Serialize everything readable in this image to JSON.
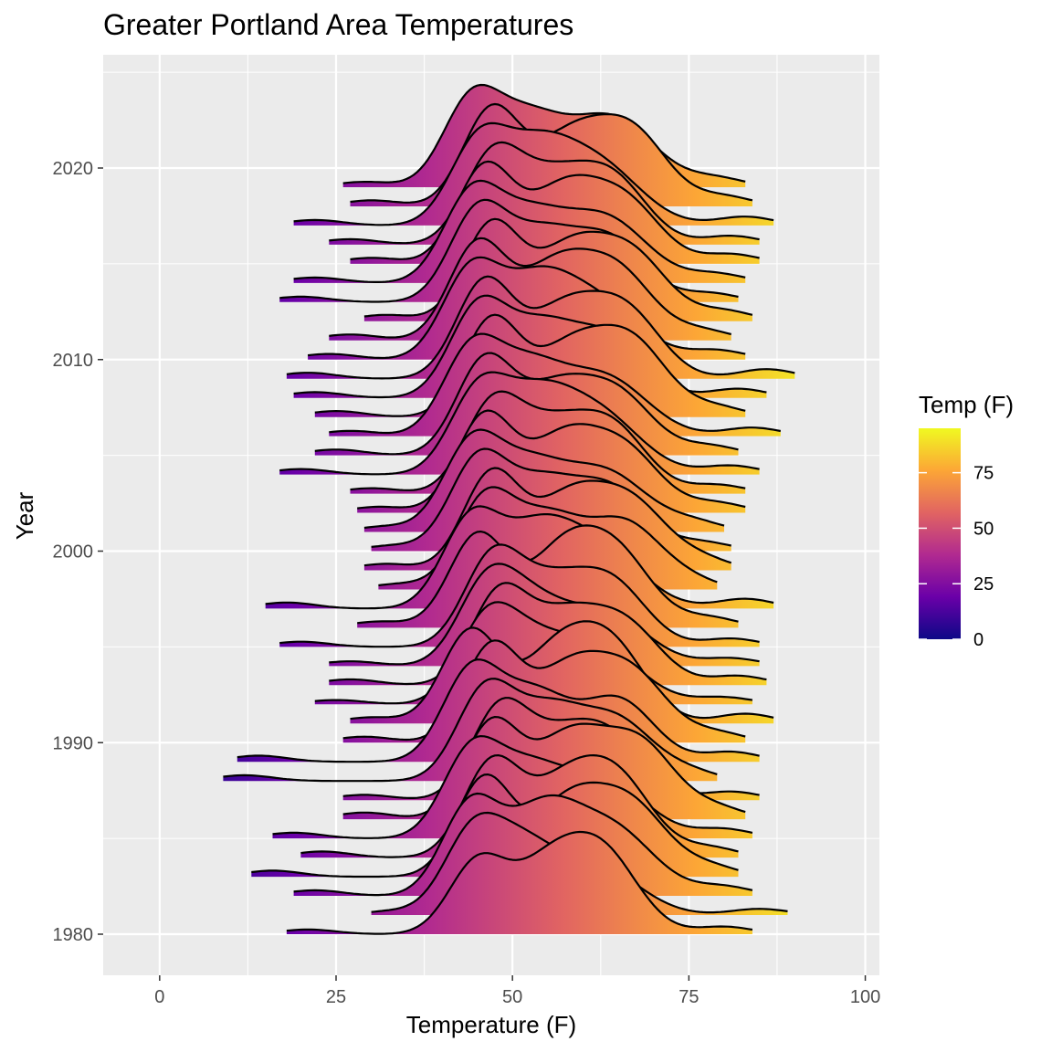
{
  "chart_data": {
    "type": "ridgeline",
    "title": "Greater Portland Area Temperatures",
    "xlabel": "Temperature (F)",
    "ylabel": "Year",
    "xlim": [
      -8,
      102
    ],
    "xticks": [
      0,
      25,
      50,
      75,
      100
    ],
    "yticks": [
      1980,
      1990,
      2000,
      2010,
      2020
    ],
    "years": [
      1980,
      1981,
      1982,
      1983,
      1984,
      1985,
      1986,
      1987,
      1988,
      1989,
      1990,
      1991,
      1992,
      1993,
      1994,
      1995,
      1996,
      1997,
      1998,
      1999,
      2000,
      2001,
      2002,
      2003,
      2004,
      2005,
      2006,
      2007,
      2008,
      2009,
      2010,
      2011,
      2012,
      2013,
      2014,
      2015,
      2016,
      2017,
      2018,
      2019
    ],
    "grid": true,
    "fill_scale": {
      "title": "Temp (F)",
      "palette": "plasma",
      "ticks": [
        0,
        25,
        50,
        75
      ],
      "range": [
        0,
        95
      ],
      "colors": [
        "#0d0887",
        "#6a00a8",
        "#b12a90",
        "#e16462",
        "#fca636",
        "#f0f921"
      ]
    },
    "series": [
      {
        "year": 1980,
        "min": 18,
        "max": 84,
        "peaks": [
          [
            45,
            4,
            0.75
          ],
          [
            55,
            5,
            0.7
          ],
          [
            63,
            5,
            0.8
          ]
        ]
      },
      {
        "year": 1981,
        "min": 30,
        "max": 89,
        "peaks": [
          [
            44,
            4,
            0.9
          ],
          [
            51,
            5,
            0.85
          ],
          [
            62,
            6,
            0.6
          ]
        ]
      },
      {
        "year": 1982,
        "min": 19,
        "max": 84,
        "peaks": [
          [
            44,
            4,
            0.8
          ],
          [
            54,
            5,
            0.7
          ],
          [
            64,
            6,
            0.6
          ]
        ]
      },
      {
        "year": 1983,
        "min": 13,
        "max": 82,
        "peaks": [
          [
            46,
            4,
            0.8
          ],
          [
            58,
            5,
            0.6
          ],
          [
            67,
            5,
            0.55
          ]
        ]
      },
      {
        "year": 1984,
        "min": 20,
        "max": 82,
        "peaks": [
          [
            47,
            4,
            0.75
          ],
          [
            57,
            5,
            0.55
          ],
          [
            65,
            5,
            0.6
          ]
        ]
      },
      {
        "year": 1985,
        "min": 16,
        "max": 84,
        "peaks": [
          [
            44,
            4,
            0.7
          ],
          [
            52,
            5,
            0.55
          ],
          [
            63,
            6,
            0.5
          ]
        ]
      },
      {
        "year": 1986,
        "min": 26,
        "max": 83,
        "peaks": [
          [
            47,
            4,
            0.7
          ],
          [
            58,
            5,
            0.6
          ],
          [
            68,
            5,
            0.55
          ]
        ]
      },
      {
        "year": 1987,
        "min": 26,
        "max": 85,
        "peaks": [
          [
            48,
            4,
            0.8
          ],
          [
            56,
            5,
            0.5
          ],
          [
            64,
            5,
            0.55
          ]
        ]
      },
      {
        "year": 1988,
        "min": 9,
        "max": 79,
        "peaks": [
          [
            46,
            4,
            0.75
          ],
          [
            55,
            5,
            0.6
          ],
          [
            65,
            5,
            0.5
          ]
        ]
      },
      {
        "year": 1989,
        "min": 11,
        "max": 85,
        "peaks": [
          [
            44,
            4,
            0.7
          ],
          [
            53,
            5,
            0.55
          ],
          [
            65,
            5,
            0.5
          ]
        ]
      },
      {
        "year": 1990,
        "min": 26,
        "max": 83,
        "peaks": [
          [
            47,
            4,
            0.8
          ],
          [
            58,
            5,
            0.6
          ],
          [
            67,
            5,
            0.55
          ]
        ]
      },
      {
        "year": 1991,
        "min": 27,
        "max": 87,
        "peaks": [
          [
            44,
            4,
            0.75
          ],
          [
            56,
            5,
            0.55
          ],
          [
            64,
            5,
            0.6
          ]
        ]
      },
      {
        "year": 1992,
        "min": 22,
        "max": 84,
        "peaks": [
          [
            46,
            4,
            0.8
          ],
          [
            52,
            5,
            0.6
          ],
          [
            62,
            6,
            0.65
          ]
        ]
      },
      {
        "year": 1993,
        "min": 24,
        "max": 86,
        "peaks": [
          [
            48,
            4,
            0.75
          ],
          [
            57,
            5,
            0.55
          ],
          [
            66,
            5,
            0.5
          ]
        ]
      },
      {
        "year": 1994,
        "min": 24,
        "max": 85,
        "peaks": [
          [
            46,
            4,
            0.7
          ],
          [
            52,
            5,
            0.6
          ],
          [
            63,
            6,
            0.55
          ]
        ]
      },
      {
        "year": 1995,
        "min": 17,
        "max": 85,
        "peaks": [
          [
            47,
            4,
            0.8
          ],
          [
            55,
            5,
            0.55
          ],
          [
            64,
            5,
            0.6
          ]
        ]
      },
      {
        "year": 1996,
        "min": 28,
        "max": 82,
        "peaks": [
          [
            45,
            4,
            0.75
          ],
          [
            57,
            5,
            0.6
          ],
          [
            65,
            5,
            0.55
          ]
        ]
      },
      {
        "year": 1997,
        "min": 15,
        "max": 87,
        "peaks": [
          [
            44,
            4,
            0.7
          ],
          [
            53,
            5,
            0.55
          ],
          [
            62,
            6,
            0.5
          ]
        ]
      },
      {
        "year": 1998,
        "min": 31,
        "max": 79,
        "peaks": [
          [
            46,
            4,
            0.8
          ],
          [
            55,
            5,
            0.65
          ],
          [
            66,
            5,
            0.6
          ]
        ]
      },
      {
        "year": 1999,
        "min": 29,
        "max": 81,
        "peaks": [
          [
            47,
            4,
            0.75
          ],
          [
            58,
            5,
            0.55
          ],
          [
            67,
            5,
            0.5
          ]
        ]
      },
      {
        "year": 2000,
        "min": 30,
        "max": 81,
        "peaks": [
          [
            45,
            4,
            0.8
          ],
          [
            54,
            5,
            0.6
          ],
          [
            64,
            5,
            0.55
          ]
        ]
      },
      {
        "year": 2001,
        "min": 29,
        "max": 80,
        "peaks": [
          [
            44,
            4,
            0.75
          ],
          [
            52,
            5,
            0.55
          ],
          [
            63,
            6,
            0.55
          ]
        ]
      },
      {
        "year": 2002,
        "min": 28,
        "max": 83,
        "peaks": [
          [
            46,
            4,
            0.8
          ],
          [
            57,
            5,
            0.6
          ],
          [
            66,
            5,
            0.5
          ]
        ]
      },
      {
        "year": 2003,
        "min": 27,
        "max": 83,
        "peaks": [
          [
            47,
            4,
            0.75
          ],
          [
            55,
            5,
            0.55
          ],
          [
            64,
            5,
            0.6
          ]
        ]
      },
      {
        "year": 2004,
        "min": 17,
        "max": 85,
        "peaks": [
          [
            45,
            4,
            0.7
          ],
          [
            53,
            5,
            0.6
          ],
          [
            62,
            6,
            0.55
          ]
        ]
      },
      {
        "year": 2005,
        "min": 22,
        "max": 82,
        "peaks": [
          [
            46,
            4,
            0.8
          ],
          [
            56,
            5,
            0.55
          ],
          [
            65,
            5,
            0.5
          ]
        ]
      },
      {
        "year": 2006,
        "min": 24,
        "max": 88,
        "peaks": [
          [
            44,
            4,
            0.75
          ],
          [
            52,
            5,
            0.6
          ],
          [
            63,
            6,
            0.55
          ]
        ]
      },
      {
        "year": 2007,
        "min": 22,
        "max": 83,
        "peaks": [
          [
            47,
            4,
            0.8
          ],
          [
            58,
            5,
            0.55
          ],
          [
            67,
            5,
            0.6
          ]
        ]
      },
      {
        "year": 2008,
        "min": 19,
        "max": 86,
        "peaks": [
          [
            45,
            4,
            0.75
          ],
          [
            54,
            5,
            0.6
          ],
          [
            64,
            5,
            0.5
          ]
        ]
      },
      {
        "year": 2009,
        "min": 18,
        "max": 90,
        "peaks": [
          [
            46,
            4,
            0.8
          ],
          [
            57,
            5,
            0.55
          ],
          [
            66,
            5,
            0.55
          ]
        ]
      },
      {
        "year": 2010,
        "min": 21,
        "max": 83,
        "peaks": [
          [
            44,
            4,
            0.75
          ],
          [
            53,
            5,
            0.6
          ],
          [
            62,
            6,
            0.5
          ]
        ]
      },
      {
        "year": 2011,
        "min": 24,
        "max": 81,
        "peaks": [
          [
            45,
            4,
            0.8
          ],
          [
            56,
            5,
            0.6
          ],
          [
            65,
            5,
            0.55
          ]
        ]
      },
      {
        "year": 2012,
        "min": 29,
        "max": 84,
        "peaks": [
          [
            47,
            4,
            0.75
          ],
          [
            58,
            5,
            0.55
          ],
          [
            67,
            5,
            0.5
          ]
        ]
      },
      {
        "year": 2013,
        "min": 17,
        "max": 82,
        "peaks": [
          [
            45,
            4,
            0.8
          ],
          [
            54,
            5,
            0.6
          ],
          [
            64,
            5,
            0.55
          ]
        ]
      },
      {
        "year": 2014,
        "min": 19,
        "max": 83,
        "peaks": [
          [
            44,
            4,
            0.75
          ],
          [
            52,
            5,
            0.55
          ],
          [
            63,
            6,
            0.6
          ]
        ]
      },
      {
        "year": 2015,
        "min": 27,
        "max": 85,
        "peaks": [
          [
            46,
            4,
            0.8
          ],
          [
            57,
            5,
            0.6
          ],
          [
            66,
            5,
            0.5
          ]
        ]
      },
      {
        "year": 2016,
        "min": 24,
        "max": 85,
        "peaks": [
          [
            47,
            4,
            0.75
          ],
          [
            55,
            5,
            0.55
          ],
          [
            64,
            5,
            0.6
          ]
        ]
      },
      {
        "year": 2017,
        "min": 19,
        "max": 87,
        "peaks": [
          [
            45,
            4,
            0.7
          ],
          [
            53,
            5,
            0.6
          ],
          [
            62,
            6,
            0.55
          ]
        ]
      },
      {
        "year": 2018,
        "min": 27,
        "max": 84,
        "peaks": [
          [
            47,
            4,
            0.8
          ],
          [
            58,
            5,
            0.55
          ],
          [
            67,
            5,
            0.6
          ]
        ]
      },
      {
        "year": 2019,
        "min": 26,
        "max": 83,
        "peaks": [
          [
            44,
            4,
            0.75
          ],
          [
            52,
            5,
            0.6
          ],
          [
            64,
            6,
            0.65
          ]
        ]
      }
    ]
  }
}
